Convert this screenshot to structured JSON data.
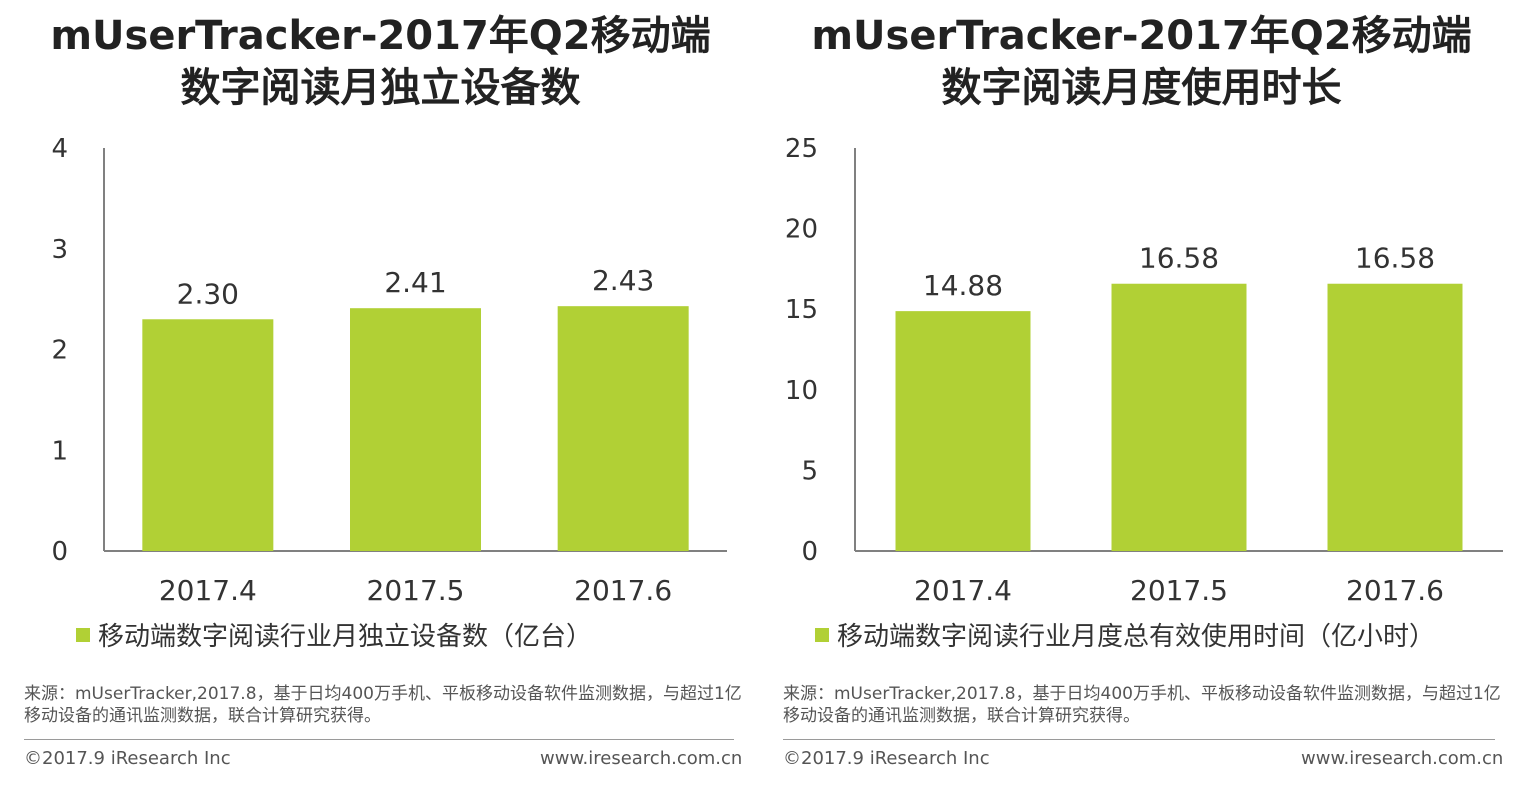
{
  "bar_color": "#b1d035",
  "axis_color": "#808080",
  "chart_data": [
    {
      "type": "bar",
      "title_lines": [
        "mUserTracker-2017年Q2移动端",
        "数字阅读月独立设备数"
      ],
      "xlabel": "",
      "ylabel": "",
      "categories": [
        "2017.4",
        "2017.5",
        "2017.6"
      ],
      "series": [
        {
          "name": "移动端数字阅读行业月独立设备数（亿台）",
          "values": [
            2.3,
            2.41,
            2.43
          ],
          "labels": [
            "2.30",
            "2.41",
            "2.43"
          ]
        }
      ],
      "ylim": [
        0,
        4
      ],
      "yticks": [
        "0",
        "1",
        "2",
        "3",
        "4"
      ],
      "grid": false,
      "legend_position": "bottom-left"
    },
    {
      "type": "bar",
      "title_lines": [
        "mUserTracker-2017年Q2移动端",
        "数字阅读月度使用时长"
      ],
      "xlabel": "",
      "ylabel": "",
      "categories": [
        "2017.4",
        "2017.5",
        "2017.6"
      ],
      "series": [
        {
          "name": "移动端数字阅读行业月度总有效使用时间（亿小时）",
          "values": [
            14.88,
            16.58,
            16.58
          ],
          "labels": [
            "14.88",
            "16.58",
            "16.58"
          ]
        }
      ],
      "ylim": [
        0,
        25
      ],
      "yticks": [
        "0",
        "5",
        "10",
        "15",
        "20",
        "25"
      ],
      "grid": false,
      "legend_position": "bottom-left"
    }
  ],
  "panels": [
    {
      "source": "来源：mUserTracker,2017.8，基于日均400万手机、平板移动设备软件监测数据，与超过1亿移动设备的通讯监测数据，联合计算研究获得。",
      "copyright": "©2017.9 iResearch Inc",
      "website": "www.iresearch.com.cn"
    },
    {
      "source": "来源：mUserTracker,2017.8，基于日均400万手机、平板移动设备软件监测数据，与超过1亿移动设备的通讯监测数据，联合计算研究获得。",
      "copyright": "©2017.9 iResearch Inc",
      "website": "www.iresearch.com.cn"
    }
  ]
}
